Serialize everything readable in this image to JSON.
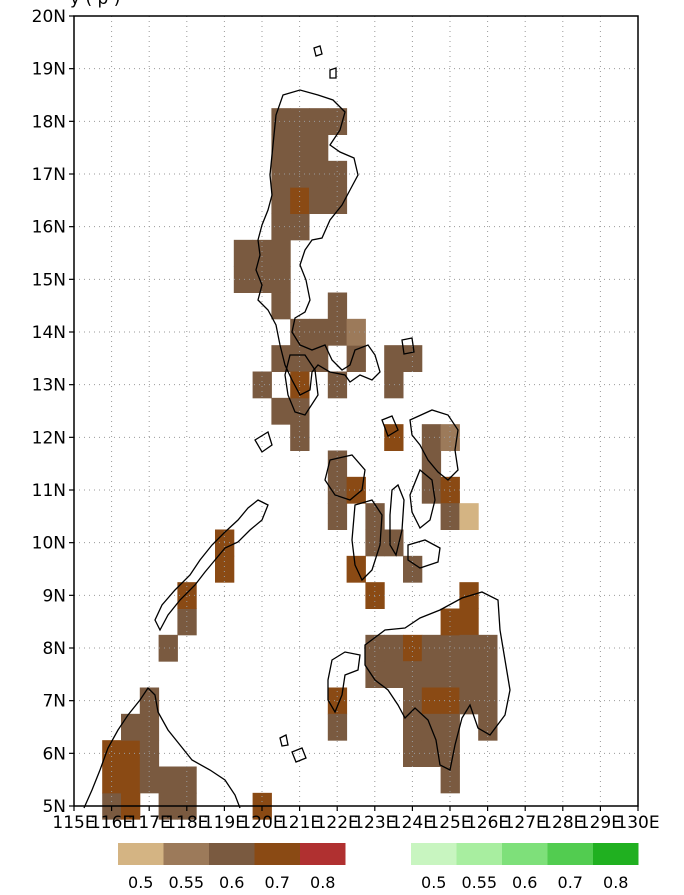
{
  "map": {
    "title_partial": "y  (  p  )",
    "lon_labels": [
      "115E",
      "116E",
      "117E",
      "118E",
      "119E",
      "120E",
      "121E",
      "122E",
      "123E",
      "124E",
      "125E",
      "126E",
      "127E",
      "128E",
      "129E",
      "130E"
    ],
    "lat_labels": [
      "5N",
      "6N",
      "7N",
      "8N",
      "9N",
      "10N",
      "11N",
      "12N",
      "13N",
      "14N",
      "15N",
      "16N",
      "17N",
      "18N",
      "19N",
      "20N"
    ],
    "lon_range": [
      115,
      130
    ],
    "lat_range": [
      5,
      20
    ],
    "grid": "dotted",
    "colors": {
      "brown": [
        "#d4b483",
        "#9c7a5a",
        "#7a5a40",
        "#8a4a14",
        "#b03030"
      ],
      "green": [
        "#c8f5c0",
        "#a8eea0",
        "#7ee07a",
        "#52cc50",
        "#20b020"
      ],
      "coast": "#000000"
    }
  },
  "legends": [
    {
      "name": "brown-scale",
      "labels": [
        "0.5",
        "0.55",
        "0.6",
        "0.7",
        "0.8"
      ]
    },
    {
      "name": "green-scale",
      "labels": [
        "0.5",
        "0.55",
        "0.6",
        "0.7",
        "0.8"
      ]
    }
  ],
  "cells": [
    {
      "lon": 116.0,
      "lat": 5.0,
      "v": 2
    },
    {
      "lon": 116.0,
      "lat": 5.5,
      "v": 3
    },
    {
      "lon": 116.0,
      "lat": 6.0,
      "v": 3
    },
    {
      "lon": 116.5,
      "lat": 5.0,
      "v": 3
    },
    {
      "lon": 116.5,
      "lat": 5.5,
      "v": 3
    },
    {
      "lon": 116.5,
      "lat": 6.0,
      "v": 3
    },
    {
      "lon": 116.5,
      "lat": 6.5,
      "v": 2
    },
    {
      "lon": 117.0,
      "lat": 5.5,
      "v": 2
    },
    {
      "lon": 117.0,
      "lat": 6.0,
      "v": 2
    },
    {
      "lon": 117.0,
      "lat": 6.5,
      "v": 2
    },
    {
      "lon": 117.0,
      "lat": 7.0,
      "v": 2
    },
    {
      "lon": 117.5,
      "lat": 5.0,
      "v": 2
    },
    {
      "lon": 117.5,
      "lat": 5.5,
      "v": 2
    },
    {
      "lon": 118.0,
      "lat": 5.0,
      "v": 2
    },
    {
      "lon": 118.0,
      "lat": 5.5,
      "v": 2
    },
    {
      "lon": 117.5,
      "lat": 8.0,
      "v": 2
    },
    {
      "lon": 118.0,
      "lat": 8.5,
      "v": 2
    },
    {
      "lon": 118.0,
      "lat": 9.0,
      "v": 3
    },
    {
      "lon": 119.0,
      "lat": 10.0,
      "v": 3
    },
    {
      "lon": 119.0,
      "lat": 9.5,
      "v": 3
    },
    {
      "lon": 120.0,
      "lat": 5.0,
      "v": 3
    },
    {
      "lon": 119.5,
      "lat": 15.0,
      "v": 2
    },
    {
      "lon": 119.5,
      "lat": 15.5,
      "v": 2
    },
    {
      "lon": 120.0,
      "lat": 15.0,
      "v": 2
    },
    {
      "lon": 120.0,
      "lat": 15.5,
      "v": 2
    },
    {
      "lon": 120.5,
      "lat": 14.5,
      "v": 2
    },
    {
      "lon": 120.5,
      "lat": 15.0,
      "v": 2
    },
    {
      "lon": 120.5,
      "lat": 15.5,
      "v": 2
    },
    {
      "lon": 120.5,
      "lat": 16.0,
      "v": 2
    },
    {
      "lon": 120.5,
      "lat": 16.5,
      "v": 2
    },
    {
      "lon": 120.5,
      "lat": 17.0,
      "v": 2
    },
    {
      "lon": 120.5,
      "lat": 17.5,
      "v": 2
    },
    {
      "lon": 120.5,
      "lat": 18.0,
      "v": 2
    },
    {
      "lon": 121.0,
      "lat": 16.0,
      "v": 2
    },
    {
      "lon": 121.0,
      "lat": 16.5,
      "v": 3
    },
    {
      "lon": 121.0,
      "lat": 17.0,
      "v": 2
    },
    {
      "lon": 121.0,
      "lat": 17.5,
      "v": 2
    },
    {
      "lon": 121.0,
      "lat": 18.0,
      "v": 2
    },
    {
      "lon": 121.5,
      "lat": 16.5,
      "v": 2
    },
    {
      "lon": 121.5,
      "lat": 17.0,
      "v": 2
    },
    {
      "lon": 121.5,
      "lat": 17.5,
      "v": 2
    },
    {
      "lon": 121.5,
      "lat": 18.0,
      "v": 2
    },
    {
      "lon": 122.0,
      "lat": 16.5,
      "v": 2
    },
    {
      "lon": 122.0,
      "lat": 17.0,
      "v": 2
    },
    {
      "lon": 122.0,
      "lat": 18.0,
      "v": 2
    },
    {
      "lon": 120.5,
      "lat": 13.5,
      "v": 2
    },
    {
      "lon": 121.0,
      "lat": 13.5,
      "v": 2
    },
    {
      "lon": 121.0,
      "lat": 14.0,
      "v": 2
    },
    {
      "lon": 121.5,
      "lat": 13.5,
      "v": 2
    },
    {
      "lon": 121.5,
      "lat": 14.0,
      "v": 2
    },
    {
      "lon": 120.0,
      "lat": 13.0,
      "v": 2
    },
    {
      "lon": 120.5,
      "lat": 12.5,
      "v": 2
    },
    {
      "lon": 121.0,
      "lat": 12.5,
      "v": 2
    },
    {
      "lon": 121.0,
      "lat": 13.0,
      "v": 3
    },
    {
      "lon": 121.0,
      "lat": 12.0,
      "v": 2
    },
    {
      "lon": 122.0,
      "lat": 14.0,
      "v": 2
    },
    {
      "lon": 122.0,
      "lat": 14.5,
      "v": 2
    },
    {
      "lon": 122.0,
      "lat": 13.0,
      "v": 2
    },
    {
      "lon": 122.5,
      "lat": 13.5,
      "v": 2
    },
    {
      "lon": 122.5,
      "lat": 14.0,
      "v": 1
    },
    {
      "lon": 123.5,
      "lat": 13.0,
      "v": 2
    },
    {
      "lon": 123.5,
      "lat": 13.5,
      "v": 2
    },
    {
      "lon": 124.0,
      "lat": 13.5,
      "v": 2
    },
    {
      "lon": 122.0,
      "lat": 10.5,
      "v": 2
    },
    {
      "lon": 122.0,
      "lat": 11.0,
      "v": 2
    },
    {
      "lon": 122.0,
      "lat": 11.5,
      "v": 2
    },
    {
      "lon": 122.5,
      "lat": 11.0,
      "v": 3
    },
    {
      "lon": 123.0,
      "lat": 10.5,
      "v": 2
    },
    {
      "lon": 123.0,
      "lat": 10.0,
      "v": 2
    },
    {
      "lon": 123.5,
      "lat": 10.0,
      "v": 2
    },
    {
      "lon": 122.5,
      "lat": 9.5,
      "v": 3
    },
    {
      "lon": 123.0,
      "lat": 9.0,
      "v": 3
    },
    {
      "lon": 123.5,
      "lat": 12.0,
      "v": 3
    },
    {
      "lon": 124.5,
      "lat": 12.0,
      "v": 2
    },
    {
      "lon": 124.5,
      "lat": 11.5,
      "v": 2
    },
    {
      "lon": 125.0,
      "lat": 12.0,
      "v": 1
    },
    {
      "lon": 124.5,
      "lat": 11.0,
      "v": 2
    },
    {
      "lon": 125.0,
      "lat": 11.0,
      "v": 3
    },
    {
      "lon": 125.0,
      "lat": 10.5,
      "v": 2
    },
    {
      "lon": 125.5,
      "lat": 10.5,
      "v": 0
    },
    {
      "lon": 124.0,
      "lat": 9.5,
      "v": 2
    },
    {
      "lon": 122.0,
      "lat": 7.0,
      "v": 3
    },
    {
      "lon": 122.0,
      "lat": 6.5,
      "v": 2
    },
    {
      "lon": 123.0,
      "lat": 8.0,
      "v": 2
    },
    {
      "lon": 123.0,
      "lat": 7.5,
      "v": 2
    },
    {
      "lon": 123.5,
      "lat": 8.0,
      "v": 2
    },
    {
      "lon": 123.5,
      "lat": 7.5,
      "v": 2
    },
    {
      "lon": 124.0,
      "lat": 8.0,
      "v": 3
    },
    {
      "lon": 124.0,
      "lat": 7.5,
      "v": 2
    },
    {
      "lon": 124.5,
      "lat": 8.0,
      "v": 2
    },
    {
      "lon": 124.5,
      "lat": 7.5,
      "v": 2
    },
    {
      "lon": 125.0,
      "lat": 8.0,
      "v": 2
    },
    {
      "lon": 125.0,
      "lat": 7.5,
      "v": 2
    },
    {
      "lon": 125.0,
      "lat": 8.5,
      "v": 3
    },
    {
      "lon": 125.5,
      "lat": 8.5,
      "v": 3
    },
    {
      "lon": 125.5,
      "lat": 9.0,
      "v": 3
    },
    {
      "lon": 125.5,
      "lat": 8.0,
      "v": 2
    },
    {
      "lon": 125.5,
      "lat": 7.5,
      "v": 2
    },
    {
      "lon": 126.0,
      "lat": 8.0,
      "v": 2
    },
    {
      "lon": 126.0,
      "lat": 7.5,
      "v": 2
    },
    {
      "lon": 126.0,
      "lat": 7.0,
      "v": 2
    },
    {
      "lon": 126.0,
      "lat": 6.5,
      "v": 2
    },
    {
      "lon": 124.0,
      "lat": 7.0,
      "v": 2
    },
    {
      "lon": 124.0,
      "lat": 6.5,
      "v": 2
    },
    {
      "lon": 124.0,
      "lat": 6.0,
      "v": 2
    },
    {
      "lon": 124.5,
      "lat": 7.0,
      "v": 3
    },
    {
      "lon": 124.5,
      "lat": 6.5,
      "v": 2
    },
    {
      "lon": 124.5,
      "lat": 6.0,
      "v": 2
    },
    {
      "lon": 125.0,
      "lat": 7.0,
      "v": 3
    },
    {
      "lon": 125.0,
      "lat": 6.5,
      "v": 2
    },
    {
      "lon": 125.0,
      "lat": 6.0,
      "v": 2
    },
    {
      "lon": 125.0,
      "lat": 5.5,
      "v": 2
    },
    {
      "lon": 125.5,
      "lat": 7.0,
      "v": 2
    }
  ]
}
